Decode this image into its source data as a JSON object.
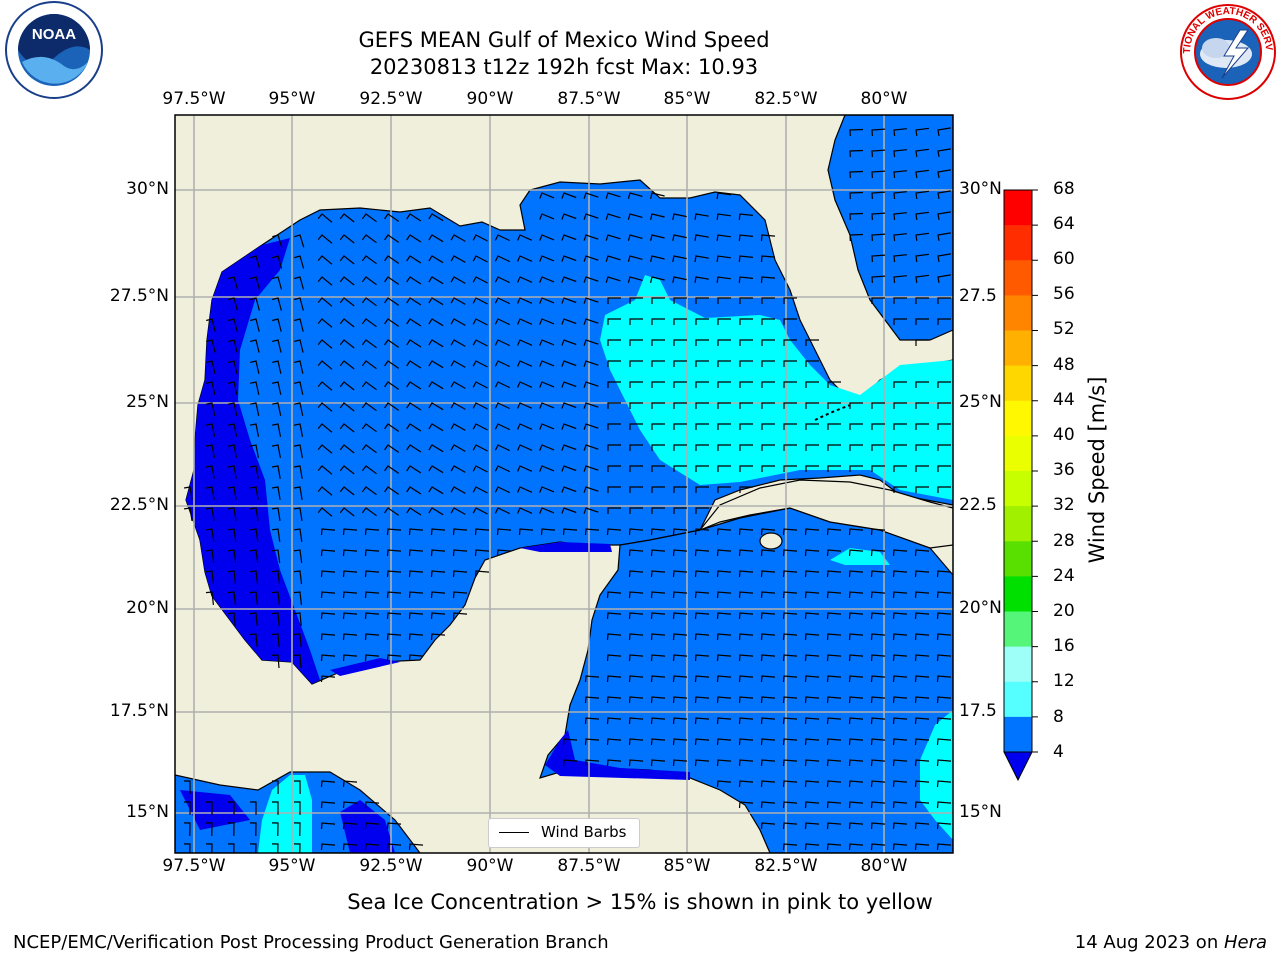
{
  "title_line1": "GEFS MEAN Gulf of Mexico Wind Speed",
  "title_line2": "20230813 t12z 192h fcst   Max: 10.93",
  "logos": {
    "left": "NOAA",
    "right": "NATIONAL WEATHER SERVICE"
  },
  "lon_labels": [
    "97.5°W",
    "95°W",
    "92.5°W",
    "90°W",
    "87.5°W",
    "85°W",
    "82.5°W",
    "80°W"
  ],
  "lat_labels_left": [
    "30°N",
    "27.5°N",
    "25°N",
    "22.5°N",
    "20°N",
    "17.5°N",
    "15°N"
  ],
  "lat_labels_right": [
    "30°N",
    "27.5",
    "25°N",
    "22.5",
    "20°N",
    "17.5",
    "15°N"
  ],
  "colorbar": {
    "title": "Wind Speed [m/s]",
    "ticks": [
      "68",
      "64",
      "60",
      "56",
      "52",
      "48",
      "44",
      "40",
      "36",
      "32",
      "28",
      "24",
      "20",
      "16",
      "12",
      "8",
      "4"
    ],
    "colors": [
      "#ff0000",
      "#ff2d00",
      "#ff5a00",
      "#ff8500",
      "#ffb000",
      "#ffd700",
      "#fff800",
      "#eaff00",
      "#c8ff00",
      "#a0f000",
      "#5ae000",
      "#00e000",
      "#55f57a",
      "#9dfff8",
      "#55ffff",
      "#00ffff",
      "#0073ff"
    ],
    "under_color": "#0000ee"
  },
  "legend": {
    "label": "Wind Barbs"
  },
  "bottom_note": "Sea Ice Concentration > 15% is shown in pink to yellow",
  "credit_left": "NCEP/EMC/Verification Post Processing Product Generation Branch",
  "credit_right_date": "14 Aug 2023 on ",
  "credit_right_host": "Hera"
}
